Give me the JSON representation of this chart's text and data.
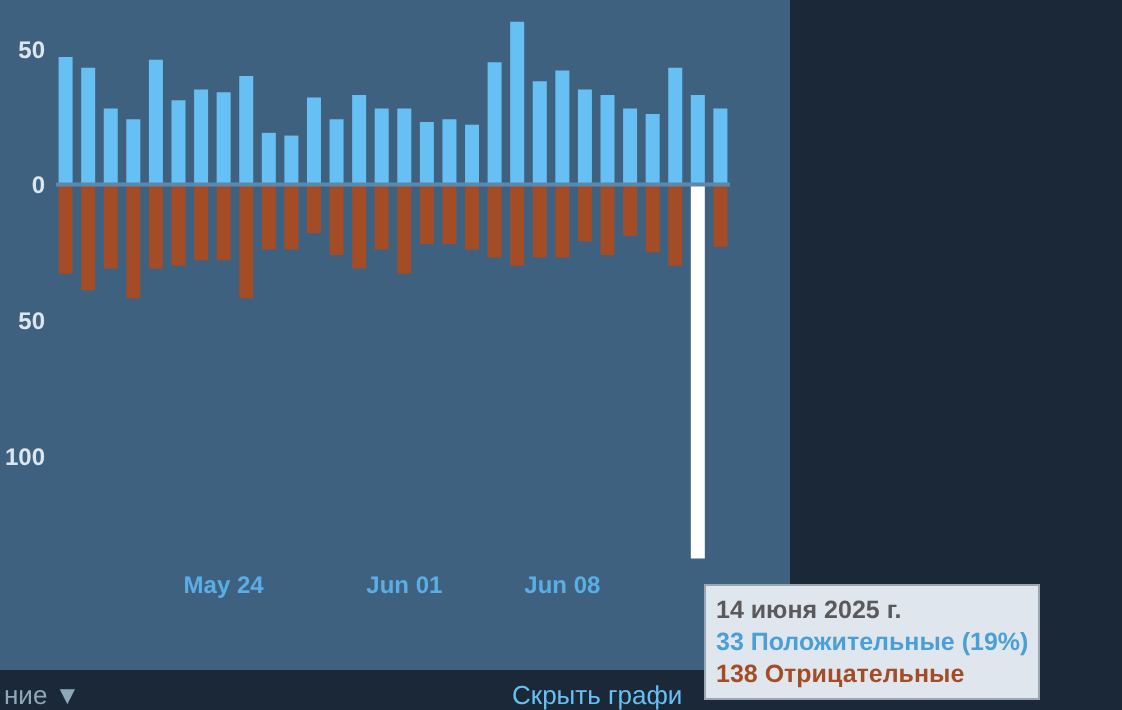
{
  "chart_data": {
    "type": "bar",
    "categories": [
      null,
      null,
      null,
      null,
      null,
      null,
      null,
      "May 24",
      null,
      null,
      null,
      null,
      null,
      null,
      null,
      "Jun 01",
      null,
      null,
      null,
      null,
      null,
      null,
      "Jun 08",
      null,
      null,
      null,
      null,
      null,
      null,
      null
    ],
    "series": [
      {
        "color": "#66c0f4",
        "values": [
          47,
          43,
          28,
          24,
          46,
          31,
          35,
          34,
          40,
          19,
          18,
          32,
          24,
          33,
          28,
          28,
          23,
          24,
          22,
          45,
          60,
          38,
          42,
          35,
          33,
          28,
          26,
          43,
          33,
          28
        ]
      },
      {
        "colors": [
          "#a34c25",
          "#a34c25",
          "#a34c25",
          "#a34c25",
          "#a34c25",
          "#a34c25",
          "#a34c25",
          "#a34c25",
          "#a34c25",
          "#a34c25",
          "#a34c25",
          "#a34c25",
          "#a34c25",
          "#a34c25",
          "#a34c25",
          "#a34c25",
          "#a34c25",
          "#a34c25",
          "#a34c25",
          "#a34c25",
          "#a34c25",
          "#a34c25",
          "#a34c25",
          "#a34c25",
          "#a34c25",
          "#a34c25",
          "#a34c25",
          "#a34c25",
          "#ffffff",
          "#a34c25"
        ],
        "values": [
          -33,
          -39,
          -31,
          -42,
          -31,
          -30,
          -28,
          -28,
          -42,
          -24,
          -24,
          -18,
          -26,
          -31,
          -24,
          -33,
          -22,
          -22,
          -24,
          -27,
          -30,
          -27,
          -27,
          -21,
          -26,
          -19,
          -25,
          -30,
          -138,
          -23
        ]
      }
    ],
    "ylim": [
      -140,
      68
    ],
    "yticks": [
      {
        "value": -100,
        "label": "100"
      },
      {
        "value": -50,
        "label": "50"
      },
      0,
      50
    ],
    "ref_lines": [
      {
        "axis": "y",
        "value": 0,
        "color": "#5b88ab"
      }
    ],
    "stacked": true,
    "grid": false,
    "annotations": [
      "14 июня 2025 г.",
      "33 Положительные (19%)",
      "138 Отрицательные",
      "ние ▼",
      "Скрыть графи"
    ]
  }
}
